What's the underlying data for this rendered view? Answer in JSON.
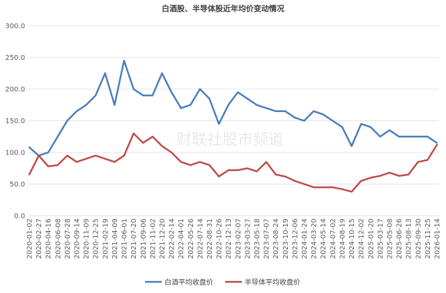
{
  "chart_data": {
    "type": "line",
    "title": "白酒股、半导体股近年均价变动情况",
    "xlabel": "",
    "ylabel": "",
    "ylim": [
      0,
      300
    ],
    "yticks": [
      "0.0",
      "50.0",
      "100.0",
      "150.0",
      "200.0",
      "250.0",
      "300.0"
    ],
    "grid": true,
    "legend_position": "bottom",
    "watermark": "财联社股市频道",
    "x": [
      "2020-01-02",
      "2020-02-27",
      "2020-04-16",
      "2020-06-08",
      "2020-07-28",
      "2020-09-14",
      "2020-11-09",
      "2020-12-25",
      "2021-02-19",
      "2021-04-09",
      "2021-06-01",
      "2021-07-20",
      "2021-09-06",
      "2021-11-02",
      "2021-12-20",
      "2022-02-14",
      "2022-04-01",
      "2022-05-26",
      "2022-07-14",
      "2022-08-31",
      "2022-10-26",
      "2022-12-13",
      "2023-02-07",
      "2023-03-27",
      "2023-05-18",
      "2023-07-07",
      "2023-08-24",
      "2023-10-19",
      "2023-12-06",
      "2024-01-24",
      "2024-03-20",
      "2024-05-14",
      "2024-07-02",
      "2024-08-19",
      "2024-10-15",
      "2024-12-02",
      "2025-01-20",
      "2025-03-17",
      "2025-05-08",
      "2025-06-26",
      "2025-08-13",
      "2025-09-30",
      "2025-11-25",
      "2026-01-14"
    ],
    "series": [
      {
        "name": "白酒平均收盘价",
        "color": "#4a7ebb",
        "values": [
          108,
          95,
          100,
          125,
          150,
          165,
          175,
          190,
          225,
          175,
          245,
          200,
          190,
          190,
          225,
          195,
          170,
          175,
          200,
          185,
          145,
          175,
          195,
          185,
          175,
          170,
          165,
          165,
          155,
          150,
          165,
          160,
          150,
          140,
          110,
          145,
          140,
          125,
          135,
          125,
          125,
          125,
          125,
          115
        ]
      },
      {
        "name": "半导体平均收盘价",
        "color": "#be4b48",
        "values": [
          65,
          95,
          78,
          80,
          95,
          85,
          90,
          95,
          90,
          85,
          95,
          130,
          115,
          125,
          110,
          100,
          85,
          80,
          85,
          80,
          62,
          72,
          72,
          75,
          70,
          85,
          65,
          62,
          55,
          50,
          45,
          45,
          45,
          42,
          38,
          55,
          60,
          63,
          68,
          63,
          65,
          85,
          88,
          112
        ]
      }
    ]
  }
}
